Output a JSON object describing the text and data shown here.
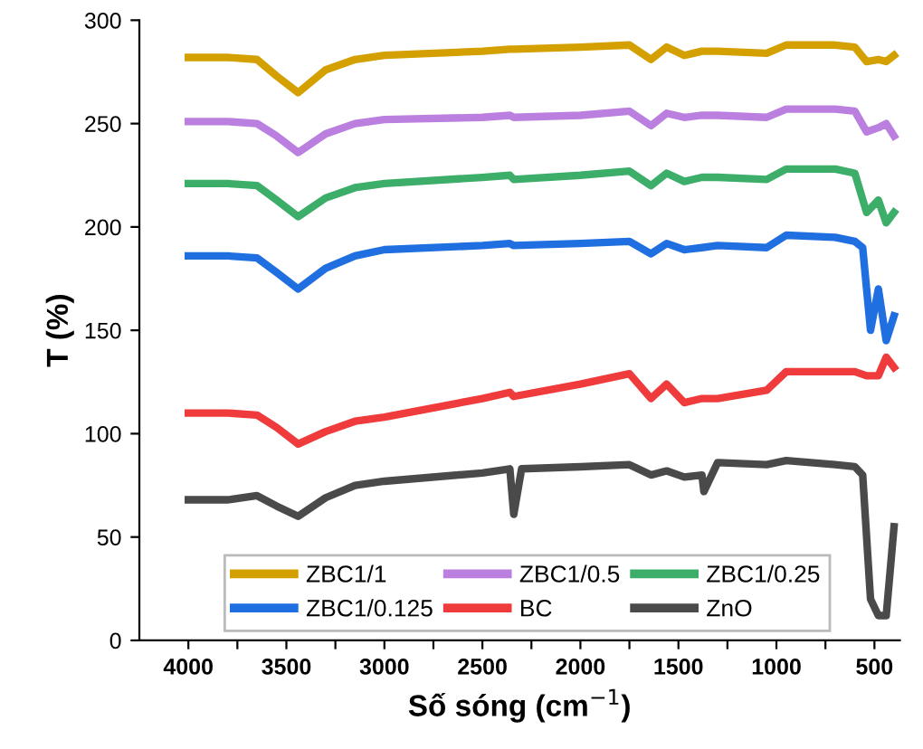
{
  "chart_data": {
    "type": "line",
    "xlabel": "Số sóng (cm$^{−1}$)",
    "ylabel": "T (%)",
    "xlim": [
      4250,
      370
    ],
    "ylim": [
      0,
      300
    ],
    "xticks": [
      4000,
      {
        "value": 3750,
        "label": null
      },
      3500,
      {
        "value": 3250,
        "label": null
      },
      3000,
      {
        "value": 2750,
        "label": null
      },
      2500,
      {
        "value": 2250,
        "label": null
      },
      2000,
      {
        "value": 1750,
        "label": null
      },
      1500,
      {
        "value": 1250,
        "label": null
      },
      1000,
      {
        "value": 750,
        "label": null
      },
      500
    ],
    "yticks": [
      0,
      50,
      100,
      150,
      200,
      250,
      300
    ],
    "grid": false,
    "legend": "bottom",
    "line_style": "solid",
    "marker": "none",
    "series": [
      {
        "name": "ZBC1/1",
        "color": "#d4a000",
        "x": [
          4000,
          3800,
          3650,
          3550,
          3440,
          3300,
          3150,
          3000,
          2500,
          2360,
          2340,
          2000,
          1750,
          1640,
          1560,
          1470,
          1380,
          1300,
          1050,
          950,
          700,
          600,
          540,
          480,
          440,
          400
        ],
        "values": [
          282,
          282,
          281,
          273,
          265,
          276,
          281,
          283,
          285,
          286,
          286,
          287,
          288,
          281,
          287,
          283,
          285,
          285,
          284,
          288,
          288,
          287,
          280,
          281,
          280,
          283
        ]
      },
      {
        "name": "ZBC1/0.5",
        "color": "#bb7fe0",
        "x": [
          4000,
          3800,
          3650,
          3550,
          3440,
          3300,
          3150,
          3000,
          2500,
          2360,
          2340,
          2000,
          1750,
          1640,
          1560,
          1470,
          1380,
          1300,
          1050,
          950,
          700,
          600,
          540,
          480,
          440,
          400
        ],
        "values": [
          251,
          251,
          250,
          244,
          236,
          245,
          250,
          252,
          253,
          254,
          253,
          254,
          256,
          249,
          255,
          253,
          254,
          254,
          253,
          257,
          257,
          256,
          246,
          248,
          250,
          244
        ]
      },
      {
        "name": "ZBC1/0.25",
        "color": "#3cae6a",
        "x": [
          4000,
          3800,
          3650,
          3550,
          3440,
          3300,
          3150,
          3000,
          2500,
          2360,
          2340,
          2000,
          1750,
          1640,
          1560,
          1470,
          1380,
          1300,
          1050,
          950,
          700,
          600,
          540,
          480,
          440,
          400
        ],
        "values": [
          221,
          221,
          220,
          213,
          205,
          214,
          219,
          221,
          224,
          225,
          223,
          225,
          227,
          220,
          226,
          222,
          224,
          224,
          223,
          228,
          228,
          226,
          207,
          213,
          202,
          207
        ]
      },
      {
        "name": "ZBC1/0.125",
        "color": "#1f6fe0",
        "x": [
          4000,
          3800,
          3650,
          3550,
          3440,
          3300,
          3150,
          3000,
          2500,
          2360,
          2340,
          2000,
          1750,
          1640,
          1560,
          1470,
          1380,
          1300,
          1050,
          950,
          700,
          600,
          560,
          520,
          480,
          440,
          400
        ],
        "values": [
          186,
          186,
          185,
          178,
          170,
          180,
          186,
          189,
          191,
          192,
          191,
          192,
          193,
          187,
          192,
          189,
          190,
          191,
          190,
          196,
          195,
          193,
          190,
          150,
          170,
          145,
          157
        ]
      },
      {
        "name": "BC",
        "color": "#ef3b3b",
        "x": [
          4000,
          3800,
          3650,
          3550,
          3440,
          3300,
          3150,
          3000,
          2500,
          2360,
          2340,
          2000,
          1750,
          1640,
          1560,
          1470,
          1380,
          1300,
          1050,
          950,
          700,
          600,
          540,
          480,
          440,
          400
        ],
        "values": [
          110,
          110,
          109,
          103,
          95,
          101,
          106,
          108,
          117,
          120,
          118,
          124,
          129,
          117,
          124,
          115,
          117,
          117,
          121,
          130,
          130,
          130,
          128,
          128,
          137,
          132
        ]
      },
      {
        "name": "ZnO",
        "color": "#4a4a4a",
        "x": [
          4000,
          3800,
          3650,
          3550,
          3440,
          3300,
          3150,
          3000,
          2500,
          2360,
          2340,
          2300,
          2000,
          1750,
          1640,
          1560,
          1470,
          1380,
          1370,
          1300,
          1050,
          950,
          700,
          600,
          560,
          520,
          480,
          440,
          400
        ],
        "values": [
          68,
          68,
          70,
          65,
          60,
          69,
          75,
          77,
          81,
          83,
          61,
          83,
          84,
          85,
          80,
          82,
          79,
          80,
          72,
          86,
          85,
          87,
          85,
          84,
          80,
          20,
          12,
          12,
          55
        ]
      }
    ]
  }
}
